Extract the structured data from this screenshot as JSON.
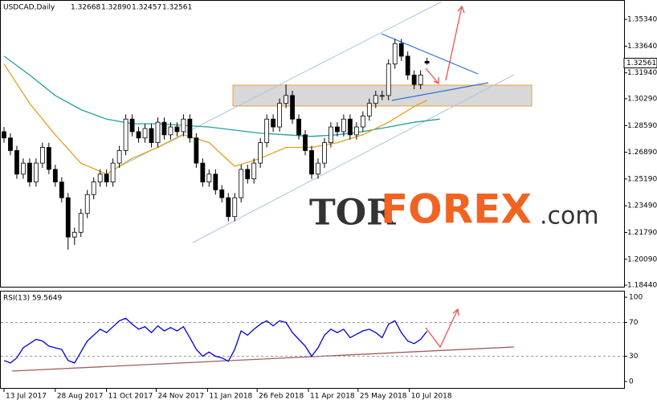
{
  "header": {
    "symbol": "USDCAD,Daily",
    "ohlc_text": [
      "1.32668",
      "1.32890",
      "1.32457",
      "1.32561"
    ]
  },
  "logo": {
    "left": "TOR",
    "middle": "FOREX",
    "right": ".com"
  },
  "chart_data": [
    {
      "type": "candlestick",
      "x": [
        0,
        4,
        8,
        12,
        16,
        20,
        24,
        28,
        32,
        36,
        40,
        44,
        48,
        52,
        56,
        60,
        64,
        68,
        72,
        76,
        80,
        84,
        88,
        92,
        96,
        100,
        104,
        108,
        112,
        116,
        120,
        124,
        128,
        132,
        136,
        140,
        144,
        148,
        152,
        156,
        160,
        164,
        168,
        172,
        176,
        180,
        184,
        188,
        192,
        196,
        200,
        204,
        208,
        212,
        216,
        220,
        224,
        228,
        232,
        236,
        240,
        244,
        248,
        252,
        256,
        260,
        264
      ],
      "open": [
        1.282,
        1.278,
        1.27,
        1.255,
        1.262,
        1.25,
        1.262,
        1.272,
        1.258,
        1.25,
        1.24,
        1.215,
        1.218,
        1.23,
        1.242,
        1.25,
        1.255,
        1.25,
        1.262,
        1.27,
        1.29,
        1.282,
        1.278,
        1.284,
        1.275,
        1.288,
        1.28,
        1.285,
        1.282,
        1.29,
        1.278,
        1.262,
        1.25,
        1.255,
        1.245,
        1.24,
        1.228,
        1.24,
        1.258,
        1.252,
        1.262,
        1.275,
        1.29,
        1.285,
        1.3,
        1.305,
        1.29,
        1.28,
        1.27,
        1.255,
        1.262,
        1.275,
        1.285,
        1.282,
        1.29,
        1.28,
        1.285,
        1.292,
        1.3,
        1.305,
        1.305,
        1.325,
        1.338,
        1.33,
        1.318,
        1.312,
        1.32668
      ],
      "high": [
        1.285,
        1.281,
        1.273,
        1.265,
        1.265,
        1.265,
        1.275,
        1.275,
        1.261,
        1.253,
        1.243,
        1.221,
        1.233,
        1.245,
        1.253,
        1.258,
        1.258,
        1.265,
        1.273,
        1.293,
        1.293,
        1.285,
        1.287,
        1.287,
        1.291,
        1.291,
        1.288,
        1.288,
        1.293,
        1.293,
        1.281,
        1.265,
        1.258,
        1.258,
        1.248,
        1.243,
        1.243,
        1.261,
        1.261,
        1.265,
        1.278,
        1.293,
        1.293,
        1.303,
        1.312,
        1.308,
        1.293,
        1.283,
        1.273,
        1.265,
        1.278,
        1.288,
        1.288,
        1.293,
        1.293,
        1.288,
        1.295,
        1.303,
        1.308,
        1.308,
        1.328,
        1.341,
        1.341,
        1.333,
        1.321,
        1.321,
        1.3289
      ],
      "low": [
        1.275,
        1.267,
        1.252,
        1.252,
        1.247,
        1.247,
        1.259,
        1.255,
        1.247,
        1.237,
        1.207,
        1.21,
        1.215,
        1.227,
        1.239,
        1.247,
        1.247,
        1.247,
        1.259,
        1.267,
        1.279,
        1.275,
        1.275,
        1.272,
        1.272,
        1.277,
        1.277,
        1.279,
        1.279,
        1.275,
        1.259,
        1.247,
        1.247,
        1.242,
        1.237,
        1.225,
        1.225,
        1.237,
        1.249,
        1.249,
        1.259,
        1.272,
        1.282,
        1.282,
        1.297,
        1.287,
        1.277,
        1.267,
        1.252,
        1.252,
        1.259,
        1.272,
        1.279,
        1.279,
        1.277,
        1.277,
        1.282,
        1.289,
        1.297,
        1.302,
        1.302,
        1.322,
        1.327,
        1.315,
        1.309,
        1.309,
        1.32457
      ],
      "close": [
        1.278,
        1.27,
        1.255,
        1.262,
        1.25,
        1.262,
        1.272,
        1.258,
        1.25,
        1.24,
        1.215,
        1.218,
        1.23,
        1.242,
        1.25,
        1.255,
        1.25,
        1.262,
        1.27,
        1.29,
        1.282,
        1.278,
        1.284,
        1.275,
        1.288,
        1.28,
        1.285,
        1.282,
        1.29,
        1.278,
        1.262,
        1.25,
        1.255,
        1.245,
        1.24,
        1.228,
        1.24,
        1.258,
        1.252,
        1.262,
        1.275,
        1.29,
        1.285,
        1.3,
        1.305,
        1.29,
        1.28,
        1.27,
        1.255,
        1.262,
        1.275,
        1.285,
        1.282,
        1.29,
        1.28,
        1.285,
        1.292,
        1.3,
        1.305,
        1.305,
        1.325,
        1.338,
        1.33,
        1.318,
        1.312,
        1.318,
        1.32561
      ],
      "series": [
        {
          "color": "#20a0a0",
          "x": [
            0,
            16,
            32,
            48,
            64,
            80,
            96,
            112,
            128,
            144,
            160,
            176,
            192,
            208,
            224,
            240,
            256,
            272
          ],
          "values": [
            1.33,
            1.318,
            1.305,
            1.296,
            1.29,
            1.287,
            1.287,
            1.286,
            1.285,
            1.283,
            1.281,
            1.28,
            1.279,
            1.28,
            1.282,
            1.285,
            1.288,
            1.29
          ]
        },
        {
          "color": "#e0a020",
          "x": [
            0,
            16,
            32,
            48,
            64,
            80,
            96,
            112,
            128,
            144,
            160,
            176,
            192,
            208,
            224,
            240,
            256,
            264
          ],
          "values": [
            1.325,
            1.3,
            1.28,
            1.262,
            1.255,
            1.265,
            1.272,
            1.28,
            1.275,
            1.26,
            1.265,
            1.272,
            1.272,
            1.275,
            1.28,
            1.288,
            1.298,
            1.302
          ]
        }
      ],
      "xlim": [
        -2,
        387
      ],
      "xticks": [
        {
          "value": 0,
          "label": "13 Jul 2017"
        },
        {
          "value": 32,
          "label": "28 Aug 2017"
        },
        {
          "value": 64,
          "label": "11 Oct 2017"
        },
        {
          "value": 95,
          "label": "24 Nov 2017"
        },
        {
          "value": 127,
          "label": "11 Jan 2018"
        },
        {
          "value": 158,
          "label": "26 Feb 2018"
        },
        {
          "value": 190,
          "label": "11 Apr 2018"
        },
        {
          "value": 221,
          "label": "25 May 2018"
        },
        {
          "value": 253,
          "label": "10 Jul 2018"
        }
      ],
      "ylim": [
        1.1829,
        1.3652
      ],
      "yticks": [
        {
          "value": 1.3534,
          "label": "1.35340"
        },
        {
          "value": 1.3364,
          "label": "1.33640"
        },
        {
          "value": 1.3194,
          "label": "1.31940"
        },
        {
          "value": 1.3029,
          "label": "1.30290"
        },
        {
          "value": 1.2859,
          "label": "1.28590"
        },
        {
          "value": 1.2689,
          "label": "1.26890"
        },
        {
          "value": 1.2519,
          "label": "1.25190"
        },
        {
          "value": 1.2349,
          "label": "1.23490"
        },
        {
          "value": 1.2179,
          "label": "1.21790"
        },
        {
          "value": 1.2009,
          "label": "1.20090"
        },
        {
          "value": 1.1844,
          "label": "1.18440"
        }
      ]
    },
    {
      "type": "line",
      "title": "RSI(13) 59.5649",
      "color": "#0000dd",
      "x": [
        0,
        4,
        8,
        12,
        16,
        20,
        24,
        28,
        32,
        36,
        40,
        44,
        48,
        52,
        56,
        60,
        64,
        68,
        72,
        76,
        80,
        84,
        88,
        92,
        96,
        100,
        104,
        108,
        112,
        116,
        120,
        124,
        128,
        132,
        136,
        140,
        144,
        148,
        152,
        156,
        160,
        164,
        168,
        172,
        176,
        180,
        184,
        188,
        192,
        196,
        200,
        204,
        208,
        212,
        216,
        220,
        224,
        228,
        232,
        236,
        240,
        244,
        248,
        252,
        256,
        260,
        264
      ],
      "values": [
        25,
        22,
        28,
        40,
        45,
        50,
        48,
        42,
        40,
        38,
        25,
        22,
        35,
        48,
        55,
        62,
        58,
        65,
        72,
        75,
        68,
        62,
        65,
        58,
        66,
        60,
        64,
        60,
        65,
        52,
        38,
        30,
        35,
        30,
        28,
        24,
        38,
        60,
        55,
        62,
        68,
        72,
        66,
        72,
        70,
        58,
        50,
        42,
        30,
        40,
        55,
        62,
        58,
        62,
        52,
        56,
        60,
        62,
        58,
        52,
        68,
        72,
        58,
        48,
        45,
        50,
        59.5649
      ],
      "xlim": [
        -2,
        387
      ],
      "ylim": [
        -7.6,
        106.7
      ],
      "yticks": [
        100,
        70,
        30,
        0
      ],
      "grid_levels": [
        70,
        30
      ]
    }
  ]
}
